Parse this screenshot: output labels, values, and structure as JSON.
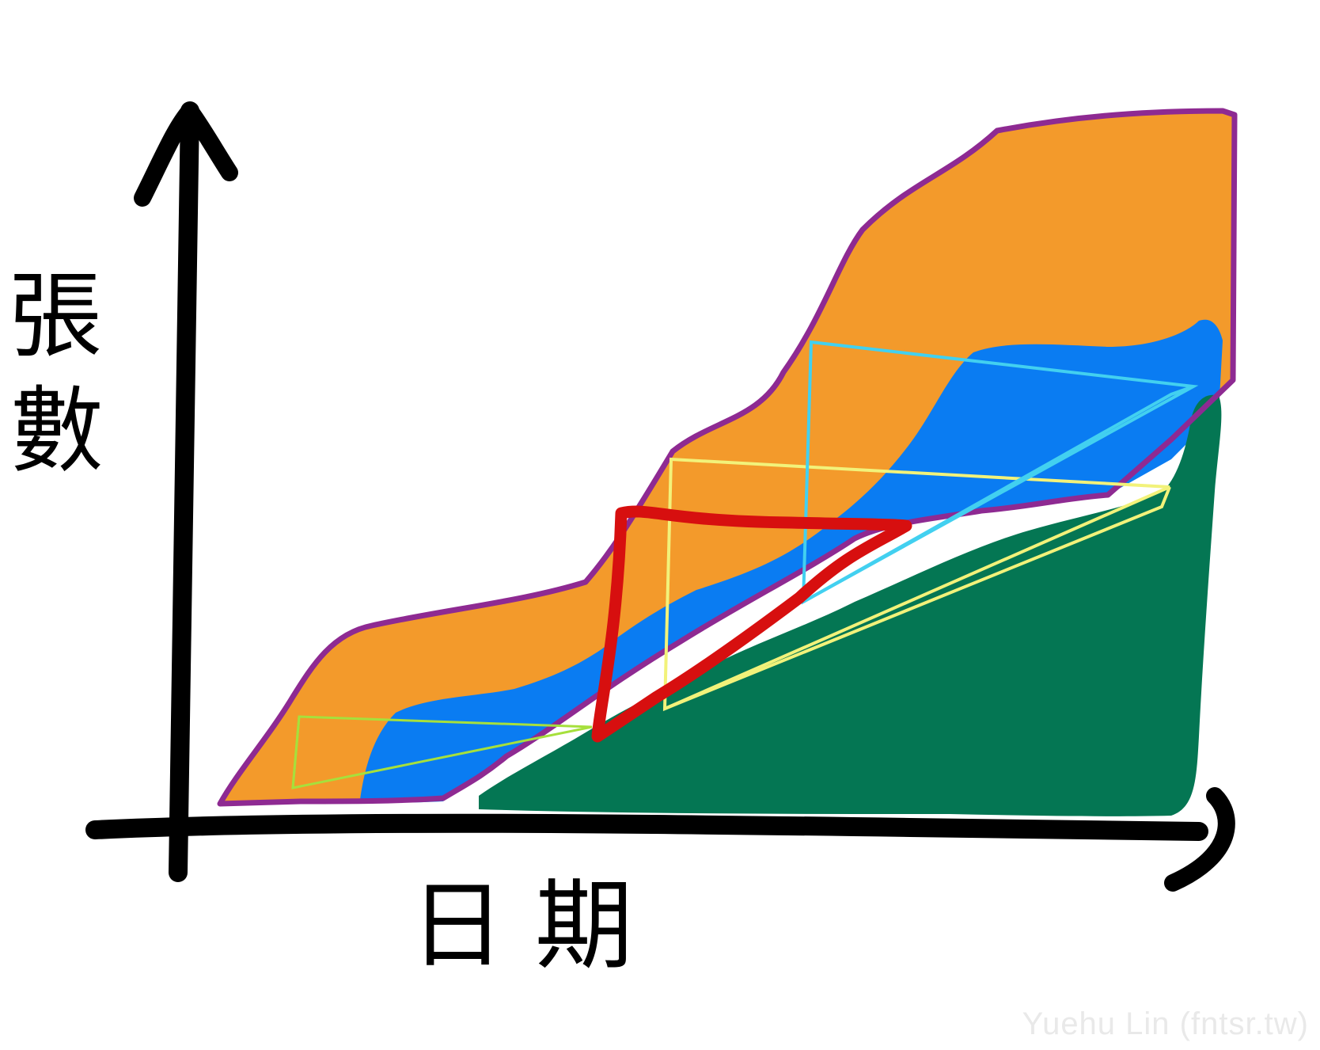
{
  "chart_data": {
    "type": "area",
    "ylabel": "張數",
    "xlabel": "日期",
    "colors": {
      "axis": "#000000",
      "orange": "#F39A2B",
      "blue": "#0A7CF2",
      "green": "#047653",
      "purple_outline": "#8E2A92",
      "red_box": "#D70F0F",
      "yellow_box": "#F2F27A",
      "cyan_box": "#42D0F0",
      "lime_box": "#A6E03C"
    }
  },
  "watermark": "Yuehu Lin (fntsr.tw)"
}
